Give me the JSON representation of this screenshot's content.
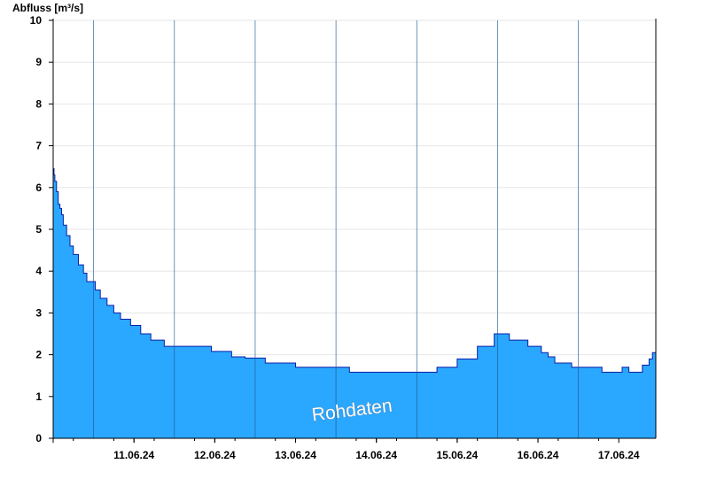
{
  "chart_data": {
    "type": "area",
    "ylabel": "Abfluss [m³/s]",
    "xlabel": "",
    "title": "",
    "ylim": [
      0,
      10
    ],
    "y_ticks": [
      0,
      1,
      2,
      3,
      4,
      5,
      6,
      7,
      8,
      9,
      10
    ],
    "xlim": [
      "10.06.24 12:00",
      "17.06.24 23:00"
    ],
    "x_tick_labels": [
      "11.06.24",
      "12.06.24",
      "13.06.24",
      "14.06.24",
      "15.06.24",
      "16.06.24",
      "17.06.24"
    ],
    "day_boundaries": [
      "11.06.24 00:00",
      "12.06.24 00:00",
      "13.06.24 00:00",
      "14.06.24 00:00",
      "15.06.24 00:00",
      "16.06.24 00:00",
      "17.06.24 00:00"
    ],
    "grid": true,
    "annotation": "Rohdaten",
    "colors": {
      "fill": "#2aa7ff",
      "line": "#0a1fa8",
      "grid": "#e6e6e6",
      "axis": "#000000"
    },
    "series": [
      {
        "x": [
          "10.06.24 12:00",
          "10.06.24 12:15",
          "10.06.24 12:30",
          "10.06.24 13:00",
          "10.06.24 13:30",
          "10.06.24 14:00",
          "10.06.24 14:30",
          "10.06.24 15:00",
          "10.06.24 16:00",
          "10.06.24 17:00",
          "10.06.24 18:00",
          "10.06.24 19:30",
          "10.06.24 21:00",
          "10.06.24 22:00",
          "10.06.24 23:00",
          "11.06.24 00:30",
          "11.06.24 02:00",
          "11.06.24 04:00",
          "11.06.24 06:00",
          "11.06.24 08:00",
          "11.06.24 11:00",
          "11.06.24 14:00",
          "11.06.24 17:00",
          "11.06.24 21:00",
          "12.06.24 00:00",
          "12.06.24 03:00",
          "12.06.24 05:00",
          "12.06.24 08:00",
          "12.06.24 11:00",
          "12.06.24 14:00",
          "12.06.24 17:00",
          "12.06.24 21:00",
          "13.06.24 00:00",
          "13.06.24 03:00",
          "13.06.24 07:00",
          "13.06.24 12:00",
          "13.06.24 18:00",
          "13.06.24 23:00",
          "14.06.24 04:00",
          "14.06.24 10:00",
          "14.06.24 18:00",
          "14.06.24 23:00",
          "15.06.24 06:00",
          "15.06.24 12:00",
          "15.06.24 18:00",
          "15.06.24 23:00",
          "16.06.24 00:30",
          "16.06.24 01:30",
          "16.06.24 02:30",
          "16.06.24 03:30",
          "16.06.24 09:00",
          "16.06.24 13:00",
          "16.06.24 15:00",
          "16.06.24 17:00",
          "16.06.24 19:00",
          "16.06.24 22:00",
          "17.06.24 00:00",
          "17.06.24 03:00",
          "17.06.24 07:00",
          "17.06.24 11:00",
          "17.06.24 13:00",
          "17.06.24 15:00",
          "17.06.24 16:00",
          "17.06.24 17:00",
          "17.06.24 19:00",
          "17.06.24 21:00",
          "17.06.24 22:00",
          "17.06.24 23:00"
        ],
        "y": [
          6.45,
          6.3,
          6.15,
          5.9,
          5.6,
          5.5,
          5.35,
          5.1,
          4.85,
          4.6,
          4.4,
          4.15,
          3.95,
          3.75,
          3.75,
          3.55,
          3.35,
          3.18,
          3.0,
          2.85,
          2.7,
          2.5,
          2.35,
          2.2,
          2.2,
          2.2,
          2.2,
          2.2,
          2.08,
          2.08,
          1.95,
          1.92,
          1.92,
          1.8,
          1.8,
          1.7,
          1.7,
          1.7,
          1.58,
          1.58,
          1.58,
          1.58,
          1.7,
          1.9,
          2.2,
          2.5,
          2.5,
          2.5,
          2.5,
          2.35,
          2.2,
          2.05,
          1.95,
          1.8,
          1.8,
          1.7,
          1.7,
          1.7,
          1.58,
          1.58,
          1.7,
          1.58,
          1.58,
          1.58,
          1.75,
          1.9,
          2.05,
          2.1
        ]
      }
    ]
  }
}
